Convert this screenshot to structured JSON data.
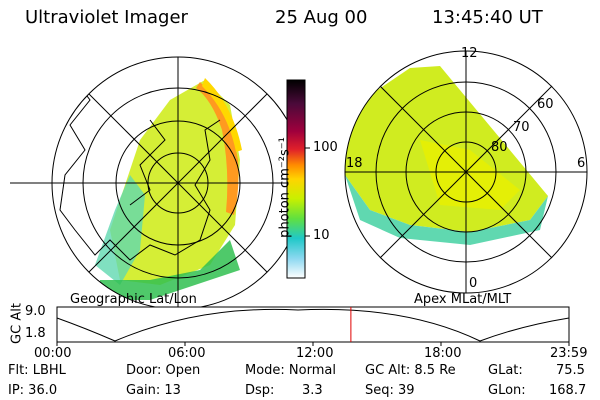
{
  "header": {
    "instrument": "Ultraviolet Imager",
    "date": "25 Aug 00",
    "time": "13:45:40 UT"
  },
  "left_map": {
    "label": "Geographic Lat/Lon"
  },
  "right_map": {
    "label": "Apex MLat/MLT",
    "mlt_labels": {
      "top": "12",
      "left": "18",
      "right": "6",
      "bottom": "0"
    },
    "lat_labels": [
      "60",
      "70",
      "80"
    ]
  },
  "colorbar": {
    "unit_label": "photon cm⁻²s⁻¹",
    "ticks": [
      "100",
      "10"
    ],
    "colors": [
      "#000000",
      "#4b0a3a",
      "#a0003c",
      "#e0202a",
      "#ff8c00",
      "#ffd400",
      "#c8f000",
      "#60e040",
      "#20c8c8",
      "#8ad8f0",
      "#ffffff"
    ]
  },
  "altitude_plot": {
    "ylabel": "GC Alt",
    "yticks": [
      "9.0",
      "1.8"
    ],
    "xticks": [
      "00:00",
      "06:00",
      "12:00",
      "18:00",
      "23:59"
    ],
    "current_time_fraction": 0.574
  },
  "info": {
    "flt": "Flt: LBHL",
    "ip": "IP: 36.0",
    "door": "Door: Open",
    "gain": "Gain: 13",
    "mode": "Mode: Normal",
    "dsp_label": "Dsp:",
    "dsp_value": "3.3",
    "gcalt": "GC Alt: 8.5 Re",
    "seq": "Seq: 39",
    "glat_label": "GLat:",
    "glat_value": "75.5",
    "glon_label": "GLon:",
    "glon_value": "168.7"
  }
}
